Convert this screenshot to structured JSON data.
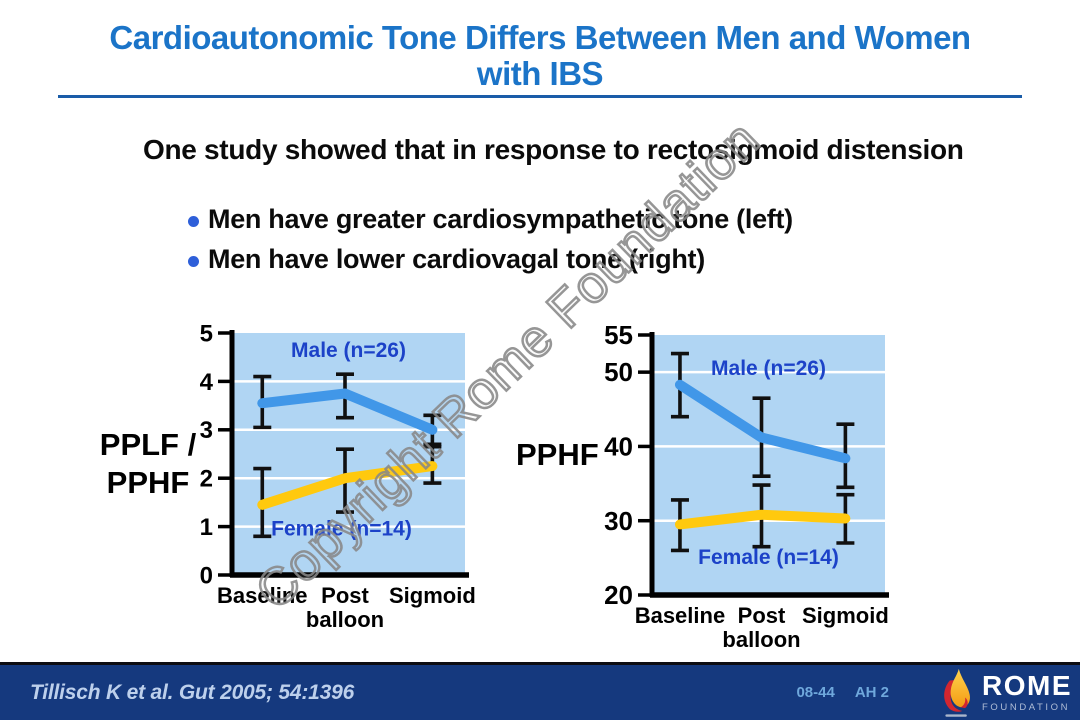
{
  "slide": {
    "title": "Cardioautonomic Tone Differs Between Men and Women with IBS",
    "body_heading": "One study showed that in response to rectosigmoid distension",
    "bullets": [
      "Men have greater cardiosympathetic tone (left)",
      "Men have lower cardiovagal tone (right)"
    ],
    "watermark": "Copyright Rome Foundation"
  },
  "footer": {
    "citation": "Tillisch K et al. Gut 2005; 54:1396",
    "slide_code": "08-44",
    "slide_ref": "AH 2",
    "logo_name": "ROME",
    "logo_subtitle": "FOUNDATION"
  },
  "colors": {
    "title_blue": "#1B74C8",
    "plot_bg": "#B0D5F3",
    "male_line": "#4197E8",
    "female_line": "#FFC90E",
    "series_label_blue": "#1C42C8",
    "error_bar": "#101010",
    "gridline": "#FFFFFF",
    "footer_bg": "#15397E",
    "footer_codes": "#6FA8DC",
    "flame_red": "#D22630",
    "flame_gold": "#F9B02A"
  },
  "chart_data": [
    {
      "type": "line",
      "title": "",
      "ylabel": "PPLF / PPHF",
      "categories": [
        "Baseline",
        "Post balloon",
        "Sigmoid"
      ],
      "ylim": [
        0,
        5
      ],
      "yticks": [
        0,
        1,
        2,
        3,
        4,
        5
      ],
      "gridlines": [
        1,
        2,
        3,
        4
      ],
      "legend_position": "inline-labels",
      "series": [
        {
          "name": "Male (n=26)",
          "values": [
            3.55,
            3.75,
            3.0
          ],
          "err_low": [
            3.05,
            3.25,
            2.7
          ],
          "err_high": [
            4.1,
            4.15,
            3.3
          ],
          "color": "#4197E8",
          "label_pos": {
            "fx": 0.5,
            "y": 4.5
          }
        },
        {
          "name": "Female (n=14)",
          "values": [
            1.45,
            2.0,
            2.25
          ],
          "err_low": [
            0.8,
            1.3,
            1.9
          ],
          "err_high": [
            2.2,
            2.6,
            2.65
          ],
          "color": "#FFC90E",
          "label_pos": {
            "fx": 0.47,
            "y": 0.82
          }
        }
      ]
    },
    {
      "type": "line",
      "title": "",
      "ylabel": "PPHF",
      "categories": [
        "Baseline",
        "Post balloon",
        "Sigmoid"
      ],
      "ylim": [
        20,
        55
      ],
      "yticks": [
        20,
        30,
        40,
        50,
        55
      ],
      "gridlines": [
        30,
        40,
        50
      ],
      "legend_position": "inline-labels",
      "series": [
        {
          "name": "Male (n=26)",
          "values": [
            48.3,
            41.2,
            38.4
          ],
          "err_low": [
            44,
            36,
            34.5
          ],
          "err_high": [
            52.5,
            46.5,
            43
          ],
          "color": "#4197E8",
          "label_pos": {
            "fx": 0.5,
            "y": 49.6
          }
        },
        {
          "name": "Female (n=14)",
          "values": [
            29.5,
            30.8,
            30.3
          ],
          "err_low": [
            26,
            26.5,
            27
          ],
          "err_high": [
            32.8,
            34.8,
            33.5
          ],
          "color": "#FFC90E",
          "label_pos": {
            "fx": 0.5,
            "y": 24.2
          }
        }
      ]
    }
  ]
}
